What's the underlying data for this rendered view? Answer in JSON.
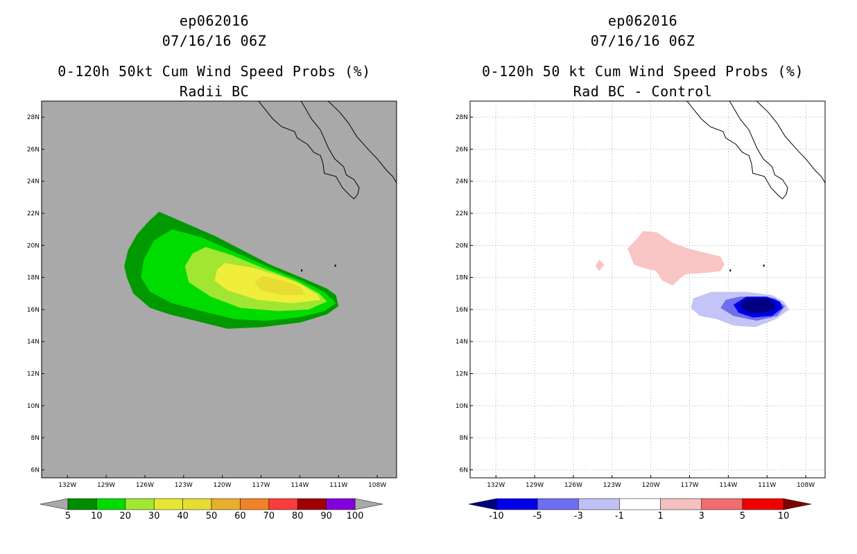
{
  "chart_data": [
    {
      "type": "heatmap",
      "storm_id": "ep062016",
      "date": "07/16/16 06Z",
      "title": "0-120h 50kt Cum Wind Speed Probs (%)",
      "subtitle": "Radii BC",
      "xlabel": "",
      "ylabel": "",
      "x_ticks": [
        "132W",
        "129W",
        "126W",
        "123W",
        "120W",
        "117W",
        "114W",
        "111W",
        "108W"
      ],
      "y_ticks": [
        "28N",
        "26N",
        "24N",
        "22N",
        "20N",
        "18N",
        "16N",
        "14N",
        "12N",
        "10N",
        "8N",
        "6N"
      ],
      "lon_range": [
        -134,
        -106.5
      ],
      "lat_range": [
        5.5,
        29
      ],
      "grid": false,
      "background_color": "#a9a9a9",
      "colorbar": {
        "labels": [
          "5",
          "10",
          "20",
          "30",
          "40",
          "50",
          "60",
          "70",
          "80",
          "90",
          "100"
        ],
        "colors": [
          "#008c00",
          "#00dc00",
          "#a0e632",
          "#e6e632",
          "#e6dc32",
          "#e6af2d",
          "#f08228",
          "#fa3c3c",
          "#a00000",
          "#8200dc"
        ],
        "end_colors": [
          "#a9a9a9",
          "#a9a9a9"
        ]
      },
      "contours": [
        {
          "level": 5,
          "color": "#009900",
          "points": [
            [
              -124.9,
              22.1
            ],
            [
              -122.6,
              21.3
            ],
            [
              -120.6,
              20.6
            ],
            [
              -118.2,
              19.6
            ],
            [
              -116.3,
              18.8
            ],
            [
              -113.6,
              17.9
            ],
            [
              -111.9,
              17.3
            ],
            [
              -111.2,
              16.9
            ],
            [
              -111,
              16.2
            ],
            [
              -111.9,
              15.7
            ],
            [
              -113.9,
              15.2
            ],
            [
              -116.9,
              14.9
            ],
            [
              -119.6,
              14.8
            ],
            [
              -121.6,
              15.2
            ],
            [
              -124.1,
              15.7
            ],
            [
              -125.6,
              16.1
            ],
            [
              -126.9,
              17
            ],
            [
              -127.4,
              18
            ],
            [
              -127.6,
              18.7
            ],
            [
              -127.3,
              19.7
            ],
            [
              -126.6,
              20.7
            ],
            [
              -125.7,
              21.5
            ]
          ]
        },
        {
          "level": 10,
          "color": "#00dc00",
          "points": [
            [
              -123.9,
              21
            ],
            [
              -121.6,
              20.5
            ],
            [
              -119.1,
              19.6
            ],
            [
              -116.3,
              18.6
            ],
            [
              -113.9,
              17.8
            ],
            [
              -112.1,
              17.1
            ],
            [
              -111.2,
              16.4
            ],
            [
              -112.1,
              15.9
            ],
            [
              -114.1,
              15.5
            ],
            [
              -116.6,
              15.3
            ],
            [
              -119.1,
              15.4
            ],
            [
              -121.6,
              15.9
            ],
            [
              -123.9,
              16.4
            ],
            [
              -125.6,
              17.1
            ],
            [
              -126.3,
              18
            ],
            [
              -126.1,
              19.1
            ],
            [
              -125.3,
              20.3
            ]
          ]
        },
        {
          "level": 20,
          "color": "#a0e632",
          "points": [
            [
              -121.3,
              19.9
            ],
            [
              -119.3,
              19.4
            ],
            [
              -116.9,
              18.6
            ],
            [
              -114.3,
              17.8
            ],
            [
              -112.5,
              17
            ],
            [
              -111.9,
              16.5
            ],
            [
              -113.3,
              16
            ],
            [
              -115.6,
              15.9
            ],
            [
              -118.6,
              16.1
            ],
            [
              -120.9,
              16.8
            ],
            [
              -122.6,
              17.7
            ],
            [
              -122.9,
              18.7
            ],
            [
              -122.3,
              19.5
            ]
          ]
        },
        {
          "level": 30,
          "color": "#f0ee3a",
          "points": [
            [
              -119.8,
              18.9
            ],
            [
              -117.6,
              18.6
            ],
            [
              -115.6,
              18.1
            ],
            [
              -114,
              17.6
            ],
            [
              -112.6,
              16.9
            ],
            [
              -112.4,
              16.6
            ],
            [
              -114.6,
              16.4
            ],
            [
              -117.3,
              16.6
            ],
            [
              -119.6,
              17.2
            ],
            [
              -120.6,
              17.8
            ],
            [
              -120.4,
              18.5
            ]
          ]
        },
        {
          "level": 40,
          "color": "#e6dc32",
          "points": [
            [
              -116.9,
              18.1
            ],
            [
              -115.3,
              17.8
            ],
            [
              -113.9,
              17.4
            ],
            [
              -113.6,
              16.9
            ],
            [
              -115.3,
              16.9
            ],
            [
              -117,
              17.2
            ],
            [
              -117.5,
              17.7
            ]
          ]
        }
      ]
    },
    {
      "type": "heatmap",
      "storm_id": "ep062016",
      "date": "07/16/16 06Z",
      "title": "0-120h 50 kt Cum Wind Speed Probs (%)",
      "subtitle": "Rad BC - Control",
      "xlabel": "",
      "ylabel": "",
      "x_ticks": [
        "132W",
        "129W",
        "126W",
        "123W",
        "120W",
        "117W",
        "114W",
        "111W",
        "108W"
      ],
      "y_ticks": [
        "28N",
        "26N",
        "24N",
        "22N",
        "20N",
        "18N",
        "16N",
        "14N",
        "12N",
        "10N",
        "8N",
        "6N"
      ],
      "lon_range": [
        -134,
        -106.5
      ],
      "lat_range": [
        5.5,
        29
      ],
      "grid": true,
      "background_color": "#ffffff",
      "colorbar": {
        "labels": [
          "-10",
          "-5",
          "-3",
          "-1",
          "1",
          "3",
          "5",
          "10"
        ],
        "colors": [
          "#0000e6",
          "#6e6ef0",
          "#c0c0f5",
          "#ffffff",
          "#f5c0c0",
          "#f06e6e",
          "#f00000"
        ],
        "end_colors": [
          "#000080",
          "#800000"
        ]
      },
      "contours": [
        {
          "level": 1,
          "color": "#f8c4c4",
          "points": [
            [
              -120.6,
              20.9
            ],
            [
              -119.5,
              20.8
            ],
            [
              -118.4,
              20.2
            ],
            [
              -117.1,
              19.8
            ],
            [
              -115.6,
              19.5
            ],
            [
              -114.6,
              19.3
            ],
            [
              -114.3,
              18.8
            ],
            [
              -114.6,
              18.4
            ],
            [
              -115.6,
              18.3
            ],
            [
              -117.3,
              18.2
            ],
            [
              -117.8,
              17.9
            ],
            [
              -118.3,
              17.5
            ],
            [
              -119.1,
              17.8
            ],
            [
              -119.6,
              18.4
            ],
            [
              -120.6,
              18.6
            ],
            [
              -121.3,
              18.8
            ],
            [
              -121.8,
              19.8
            ],
            [
              -121.1,
              20.4
            ]
          ]
        },
        {
          "level": 1,
          "color": "#f8c4c4",
          "points": [
            [
              -124,
              19.1
            ],
            [
              -123.6,
              18.8
            ],
            [
              -124,
              18.4
            ],
            [
              -124.3,
              18.7
            ]
          ]
        },
        {
          "level": -1,
          "color": "#c4c4f6",
          "points": [
            [
              -115.3,
              17.1
            ],
            [
              -112.5,
              17.1
            ],
            [
              -110.6,
              16.9
            ],
            [
              -109.7,
              16.5
            ],
            [
              -109.3,
              16
            ],
            [
              -110.3,
              15.4
            ],
            [
              -111.9,
              14.9
            ],
            [
              -113.6,
              15
            ],
            [
              -114.9,
              15.4
            ],
            [
              -116.2,
              15.6
            ],
            [
              -116.9,
              16.1
            ],
            [
              -116.7,
              16.7
            ]
          ]
        },
        {
          "level": -3,
          "color": "#6e6ef0",
          "points": [
            [
              -113.1,
              16.8
            ],
            [
              -111.6,
              16.8
            ],
            [
              -110.4,
              16.7
            ],
            [
              -109.6,
              16.2
            ],
            [
              -110.2,
              15.6
            ],
            [
              -111.8,
              15.3
            ],
            [
              -113.6,
              15.6
            ],
            [
              -114.6,
              16.1
            ],
            [
              -114.2,
              16.6
            ]
          ]
        },
        {
          "level": -5,
          "color": "#0000e6",
          "points": [
            [
              -112.6,
              16.8
            ],
            [
              -111,
              16.8
            ],
            [
              -110,
              16.5
            ],
            [
              -109.8,
              16.1
            ],
            [
              -110.6,
              15.6
            ],
            [
              -112.1,
              15.5
            ],
            [
              -113.2,
              15.8
            ],
            [
              -113.6,
              16.3
            ]
          ]
        },
        {
          "level": -10,
          "color": "#000080",
          "points": [
            [
              -112.3,
              16.7
            ],
            [
              -111,
              16.7
            ],
            [
              -110.4,
              16.4
            ],
            [
              -110.4,
              16
            ],
            [
              -111.3,
              15.8
            ],
            [
              -112.4,
              15.8
            ],
            [
              -113,
              16.1
            ],
            [
              -113,
              16.5
            ]
          ]
        }
      ]
    }
  ],
  "coastline": [
    [
      -117.2,
      29
    ],
    [
      -116.9,
      28.7
    ],
    [
      -116.6,
      28.4
    ],
    [
      -116.1,
      27.9
    ],
    [
      -115.4,
      27.4
    ],
    [
      -114.4,
      27.1
    ],
    [
      -114.2,
      26.7
    ],
    [
      -113.4,
      26.3
    ],
    [
      -112.9,
      25.8
    ],
    [
      -112.4,
      25.6
    ],
    [
      -112.2,
      25.1
    ],
    [
      -112.1,
      24.5
    ],
    [
      -111.2,
      24.3
    ],
    [
      -110.7,
      23.6
    ],
    [
      -110.1,
      23.1
    ],
    [
      -109.8,
      22.9
    ],
    [
      -109.5,
      23.2
    ],
    [
      -109.4,
      23.6
    ],
    [
      -109.8,
      24.1
    ],
    [
      -110.4,
      24.4
    ],
    [
      -110.6,
      24.9
    ],
    [
      -111.3,
      25.4
    ],
    [
      -111.8,
      26.1
    ],
    [
      -112.4,
      27.2
    ],
    [
      -113.1,
      27.9
    ],
    [
      -113.6,
      28.6
    ],
    [
      -113.9,
      29
    ]
  ],
  "mainland_coast": [
    [
      -111.8,
      29
    ],
    [
      -110.9,
      28.3
    ],
    [
      -110.2,
      27.6
    ],
    [
      -109.6,
      26.8
    ],
    [
      -108.6,
      25.9
    ],
    [
      -108,
      25.4
    ],
    [
      -107.3,
      24.7
    ],
    [
      -106.8,
      24.3
    ],
    [
      -106.5,
      23.9
    ]
  ],
  "coast_dots": [
    [
      -113.9,
      18.5
    ],
    [
      -111.3,
      18.8
    ]
  ]
}
